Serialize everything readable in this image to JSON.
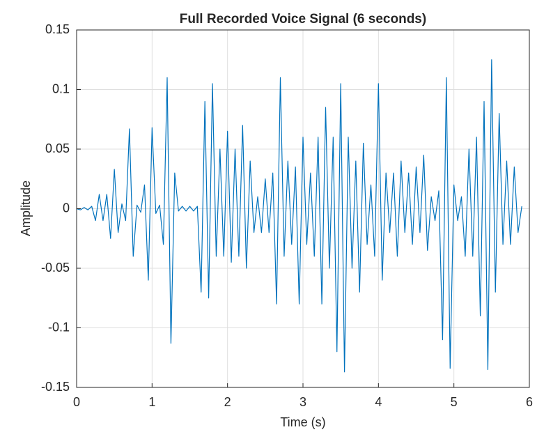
{
  "chart_data": {
    "type": "line",
    "title": "Full Recorded Voice Signal (6 seconds)",
    "xlabel": "Time (s)",
    "ylabel": "Amplitude",
    "xlim": [
      0,
      6
    ],
    "xticks": [
      0,
      1,
      2,
      3,
      4,
      5,
      6
    ],
    "ylim": [
      -0.15,
      0.15
    ],
    "yticks": [
      -0.15,
      -0.1,
      -0.05,
      0,
      0.05,
      0.1,
      0.15
    ],
    "grid": true,
    "series": [
      {
        "color": "#0072bd",
        "x": [
          0,
          0.05,
          0.1,
          0.15,
          0.2,
          0.25,
          0.3,
          0.35,
          0.4,
          0.45,
          0.5,
          0.55,
          0.6,
          0.65,
          0.7,
          0.75,
          0.8,
          0.85,
          0.9,
          0.95,
          1.0,
          1.05,
          1.1,
          1.15,
          1.2,
          1.25,
          1.3,
          1.35,
          1.4,
          1.45,
          1.5,
          1.55,
          1.6,
          1.65,
          1.7,
          1.75,
          1.8,
          1.85,
          1.9,
          1.95,
          2.0,
          2.05,
          2.1,
          2.15,
          2.2,
          2.25,
          2.3,
          2.35,
          2.4,
          2.45,
          2.5,
          2.55,
          2.6,
          2.65,
          2.7,
          2.75,
          2.8,
          2.85,
          2.9,
          2.95,
          3.0,
          3.05,
          3.1,
          3.15,
          3.2,
          3.25,
          3.3,
          3.35,
          3.4,
          3.45,
          3.5,
          3.55,
          3.6,
          3.65,
          3.7,
          3.75,
          3.8,
          3.85,
          3.9,
          3.95,
          4.0,
          4.05,
          4.1,
          4.15,
          4.2,
          4.25,
          4.3,
          4.35,
          4.4,
          4.45,
          4.5,
          4.55,
          4.6,
          4.65,
          4.7,
          4.75,
          4.8,
          4.85,
          4.9,
          4.95,
          5.0,
          5.05,
          5.1,
          5.15,
          5.2,
          5.25,
          5.3,
          5.35,
          5.4,
          5.45,
          5.5,
          5.55,
          5.6,
          5.65,
          5.7,
          5.75,
          5.8,
          5.85,
          5.9
        ],
        "values": [
          0,
          -0.001,
          0.001,
          -0.001,
          0.002,
          -0.01,
          0.012,
          -0.01,
          0.012,
          -0.025,
          0.033,
          -0.02,
          0.004,
          -0.01,
          0.067,
          -0.04,
          0.003,
          -0.003,
          0.02,
          -0.06,
          0.068,
          -0.004,
          0.003,
          -0.03,
          0.11,
          -0.113,
          0.03,
          -0.002,
          0.002,
          -0.002,
          0.002,
          -0.002,
          0.002,
          -0.07,
          0.09,
          -0.075,
          0.105,
          -0.04,
          0.05,
          -0.04,
          0.065,
          -0.045,
          0.05,
          -0.04,
          0.07,
          -0.05,
          0.04,
          -0.02,
          0.01,
          -0.02,
          0.025,
          -0.02,
          0.03,
          -0.08,
          0.11,
          -0.04,
          0.04,
          -0.03,
          0.035,
          -0.08,
          0.06,
          -0.03,
          0.03,
          -0.04,
          0.06,
          -0.08,
          0.085,
          -0.05,
          0.06,
          -0.12,
          0.105,
          -0.137,
          0.06,
          -0.05,
          0.04,
          -0.07,
          0.055,
          -0.03,
          0.02,
          -0.04,
          0.105,
          -0.06,
          0.03,
          -0.02,
          0.03,
          -0.04,
          0.04,
          -0.02,
          0.03,
          -0.03,
          0.035,
          -0.02,
          0.045,
          -0.035,
          0.01,
          -0.01,
          0.015,
          -0.11,
          0.11,
          -0.134,
          0.02,
          -0.01,
          0.01,
          -0.04,
          0.05,
          -0.04,
          0.06,
          -0.09,
          0.09,
          -0.135,
          0.125,
          -0.07,
          0.08,
          -0.03,
          0.04,
          -0.03,
          0.035,
          -0.02,
          0.002
        ]
      }
    ]
  }
}
